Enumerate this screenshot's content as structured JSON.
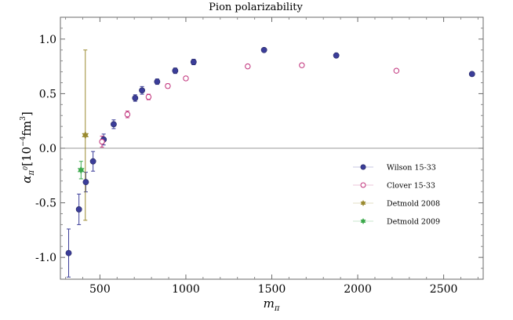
{
  "chart_data": {
    "type": "scatter",
    "title": "Pion polarizability",
    "xlabel": "m_π",
    "ylabel": "α_{π⁰} [10⁻⁴ fm³]",
    "xlim": [
      270,
      2730
    ],
    "ylim": [
      -1.2,
      1.2
    ],
    "xticks": [
      500,
      1000,
      1500,
      2000,
      2500
    ],
    "yticks": [
      -1.0,
      -0.5,
      0.0,
      0.5,
      1.0
    ],
    "ytick_labels": [
      "-1.0",
      "-0.5",
      "0.0",
      "0.5",
      "1.0"
    ],
    "legend_position": "center-right",
    "series": [
      {
        "name": "Wilson 15-33",
        "marker": "filled-circle",
        "color": "#3b3d99",
        "points": [
          {
            "x": 318,
            "y": -0.96,
            "err": 0.22
          },
          {
            "x": 378,
            "y": -0.56,
            "err": 0.14
          },
          {
            "x": 418,
            "y": -0.31,
            "err": 0.09
          },
          {
            "x": 460,
            "y": -0.12,
            "err": 0.09
          },
          {
            "x": 522,
            "y": 0.08,
            "err": 0.05
          },
          {
            "x": 580,
            "y": 0.22,
            "err": 0.04
          },
          {
            "x": 705,
            "y": 0.46,
            "err": 0.03
          },
          {
            "x": 745,
            "y": 0.53,
            "err": 0.035
          },
          {
            "x": 833,
            "y": 0.61,
            "err": 0.025
          },
          {
            "x": 938,
            "y": 0.71,
            "err": 0.025
          },
          {
            "x": 1045,
            "y": 0.79,
            "err": 0.025
          },
          {
            "x": 1455,
            "y": 0.9,
            "err": 0.015
          },
          {
            "x": 1875,
            "y": 0.85,
            "err": 0.012
          },
          {
            "x": 2665,
            "y": 0.68,
            "err": 0.01
          }
        ]
      },
      {
        "name": "Clover 15-33",
        "marker": "open-circle",
        "color": "#c0307a",
        "points": [
          {
            "x": 512,
            "y": 0.06,
            "err": 0.05
          },
          {
            "x": 660,
            "y": 0.31,
            "err": 0.03
          },
          {
            "x": 783,
            "y": 0.47,
            "err": 0.025
          },
          {
            "x": 895,
            "y": 0.57,
            "err": 0.02
          },
          {
            "x": 1000,
            "y": 0.64,
            "err": 0.018
          },
          {
            "x": 1360,
            "y": 0.75,
            "err": 0.012
          },
          {
            "x": 1675,
            "y": 0.76,
            "err": 0.012
          },
          {
            "x": 2225,
            "y": 0.71,
            "err": 0.012
          }
        ]
      },
      {
        "name": "Detmold 2008",
        "marker": "star",
        "color": "#9a8a30",
        "points": [
          {
            "x": 415,
            "y": 0.12,
            "err_low": 0.78,
            "err_high": 0.78
          }
        ]
      },
      {
        "name": "Detmold 2009",
        "marker": "star",
        "color": "#3aa84a",
        "points": [
          {
            "x": 390,
            "y": -0.2,
            "err_low": 0.08,
            "err_high": 0.08
          }
        ]
      }
    ]
  }
}
